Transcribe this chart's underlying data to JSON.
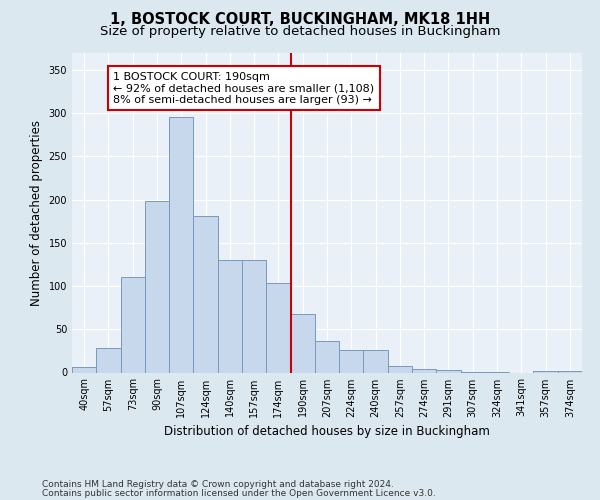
{
  "title": "1, BOSTOCK COURT, BUCKINGHAM, MK18 1HH",
  "subtitle": "Size of property relative to detached houses in Buckingham",
  "xlabel": "Distribution of detached houses by size in Buckingham",
  "ylabel": "Number of detached properties",
  "categories": [
    "40sqm",
    "57sqm",
    "73sqm",
    "90sqm",
    "107sqm",
    "124sqm",
    "140sqm",
    "157sqm",
    "174sqm",
    "190sqm",
    "207sqm",
    "224sqm",
    "240sqm",
    "257sqm",
    "274sqm",
    "291sqm",
    "307sqm",
    "324sqm",
    "341sqm",
    "357sqm",
    "374sqm"
  ],
  "values": [
    6,
    28,
    110,
    198,
    295,
    181,
    130,
    130,
    103,
    68,
    36,
    26,
    26,
    8,
    4,
    3,
    1,
    1,
    0,
    2,
    2
  ],
  "bar_color": "#c8d8ec",
  "bar_edge_color": "#7799bb",
  "highlight_line_color": "#cc0000",
  "highlight_index": 9,
  "annotation_text": "1 BOSTOCK COURT: 190sqm\n← 92% of detached houses are smaller (1,108)\n8% of semi-detached houses are larger (93) →",
  "annotation_box_color": "#ffffff",
  "annotation_box_edge_color": "#cc0000",
  "ylim": [
    0,
    370
  ],
  "yticks": [
    0,
    50,
    100,
    150,
    200,
    250,
    300,
    350
  ],
  "bg_color": "#dce8f0",
  "plot_bg_color": "#eaf0f8",
  "title_fontsize": 10.5,
  "subtitle_fontsize": 9.5,
  "axis_label_fontsize": 8.5,
  "tick_fontsize": 7,
  "annotation_fontsize": 8,
  "footer_fontsize": 6.5,
  "footer_line1": "Contains HM Land Registry data © Crown copyright and database right 2024.",
  "footer_line2": "Contains public sector information licensed under the Open Government Licence v3.0."
}
